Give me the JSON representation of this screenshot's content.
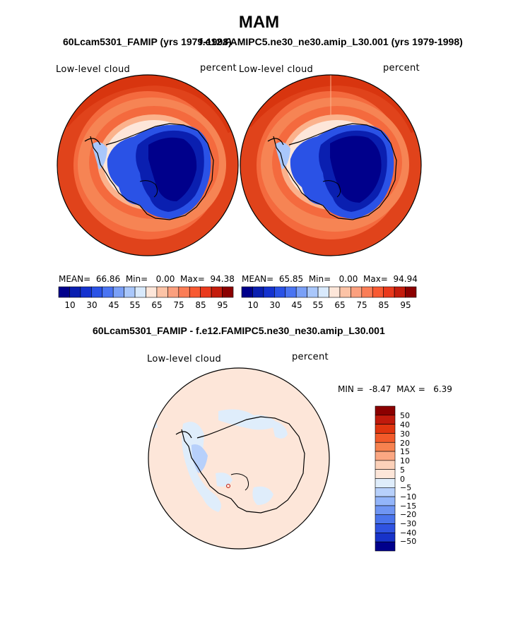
{
  "title": "MAM",
  "panel_left": {
    "subtitle": "60Lcam5301_FAMIP (yrs 1979-1998)",
    "variable": "Low-level cloud",
    "units": "percent",
    "stats": {
      "mean_label": "MEAN=",
      "mean": "66.86",
      "min_label": "Min=",
      "min": "0.00",
      "max_label": "Max=",
      "max": "94.38"
    }
  },
  "panel_right": {
    "subtitle": "f.e12.FAMIPC5.ne30_ne30.amip_L30.001 (yrs 1979-1998)",
    "variable": "Low-level cloud",
    "units": "percent",
    "stats": {
      "mean_label": "MEAN=",
      "mean": "65.85",
      "min_label": "Min=",
      "min": "0.00",
      "max_label": "Max=",
      "max": "94.94"
    }
  },
  "panel_diff": {
    "subtitle": "60Lcam5301_FAMIP - f.e12.FAMIPC5.ne30_ne30.amip_L30.001",
    "variable": "Low-level cloud",
    "units": "percent",
    "stats": {
      "min_label": "MIN =",
      "min": "-8.47",
      "max_label": "MAX =",
      "max": "6.39"
    }
  },
  "colorbar_top": {
    "colors": [
      "#00008b",
      "#0a1fb0",
      "#1432cf",
      "#2a52e6",
      "#4a74f2",
      "#7aa0f7",
      "#a9c7fb",
      "#d8e9fc",
      "#fde6d9",
      "#fcc3a6",
      "#fba07e",
      "#fa7d56",
      "#f85a32",
      "#e9391c",
      "#c41c0c",
      "#8b0000"
    ],
    "tick_labels": [
      "10",
      "30",
      "45",
      "55",
      "65",
      "75",
      "85",
      "95"
    ]
  },
  "colorbar_diff": {
    "colors": [
      "#8b0000",
      "#c01a0c",
      "#e0350f",
      "#f25a2a",
      "#f7824f",
      "#fba782",
      "#fcd1b9",
      "#fde6d9",
      "#dfedfb",
      "#b7d0fb",
      "#93b5fa",
      "#6f95f3",
      "#4a74ec",
      "#2f53e1",
      "#1733c9",
      "#00008b"
    ],
    "tick_labels": [
      "50",
      "40",
      "30",
      "20",
      "15",
      "10",
      "5",
      "0",
      "−5",
      "−10",
      "−15",
      "−20",
      "−30",
      "−40",
      "−50"
    ]
  }
}
